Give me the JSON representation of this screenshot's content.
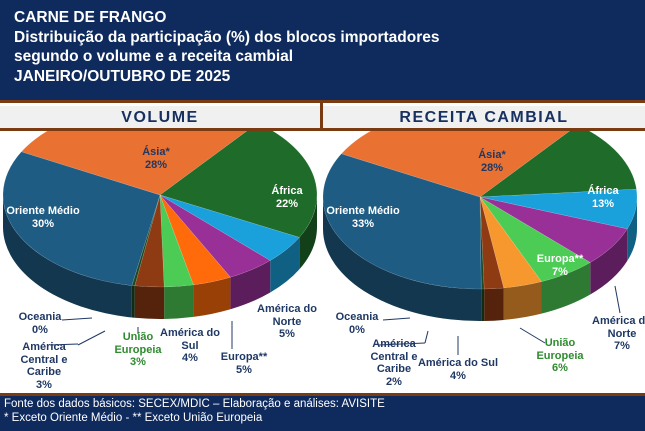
{
  "header": {
    "lines": [
      "CARNE DE FRANGO",
      "Distribuição da participação (%) dos blocos importadores",
      "segundo o volume e a receita cambial",
      "JANEIRO/OUTUBRO DE 2025"
    ]
  },
  "footer": {
    "source": "Fonte dos dados básicos: SECEX/MDIC – Elaboração e análises: AVISITE",
    "notes": "* Exceto Oriente Médio - ** Exceto União Europeia"
  },
  "chart_data": [
    {
      "type": "pie",
      "style": "3d",
      "title": "VOLUME",
      "unit": "%",
      "slices": [
        {
          "label": "Ásia*",
          "value": 28,
          "display": "28%",
          "color": "#E97132"
        },
        {
          "label": "África",
          "value": 22,
          "display": "22%",
          "color": "#1E6B2A"
        },
        {
          "label": "América do Norte",
          "value": 5,
          "display": "5%",
          "color": "#1AA0DA"
        },
        {
          "label": "Europa**",
          "value": 5,
          "display": "5%",
          "color": "#983098"
        },
        {
          "label": "América do Sul",
          "value": 4,
          "display": "4%",
          "color": "#FF6A0A"
        },
        {
          "label": "União Europeia",
          "value": 3,
          "display": "3%",
          "color": "#4CCB55"
        },
        {
          "label": "América Central e Caribe",
          "value": 3,
          "display": "3%",
          "color": "#8E3A12"
        },
        {
          "label": "Oceania",
          "value": 0,
          "display": "0%",
          "color": "#1E4A22"
        },
        {
          "label": "Oriente Médio",
          "value": 30,
          "display": "30%",
          "color": "#1F5C84"
        }
      ]
    },
    {
      "type": "pie",
      "style": "3d",
      "title": "RECEITA CAMBIAL",
      "unit": "%",
      "slices": [
        {
          "label": "Ásia*",
          "value": 28,
          "display": "28%",
          "color": "#E97132"
        },
        {
          "label": "África",
          "value": 13,
          "display": "13%",
          "color": "#1E6B2A"
        },
        {
          "label": "América do Norte",
          "value": 7,
          "display": "7%",
          "color": "#1AA0DA"
        },
        {
          "label": "Europa**",
          "value": 7,
          "display": "7%",
          "color": "#983098"
        },
        {
          "label": "União Europeia",
          "value": 6,
          "display": "6%",
          "color": "#4CCB55"
        },
        {
          "label": "América do Sul",
          "value": 4,
          "display": "4%",
          "color": "#F7982F"
        },
        {
          "label": "América Central e Caribe",
          "value": 2,
          "display": "2%",
          "color": "#8E3A12"
        },
        {
          "label": "Oceania",
          "value": 0,
          "display": "0%",
          "color": "#1E4A22"
        },
        {
          "label": "Oriente Médio",
          "value": 33,
          "display": "33%",
          "color": "#1F5C84"
        }
      ]
    }
  ],
  "labels": {
    "left": {
      "asia": [
        "Ásia*",
        "28%"
      ],
      "africa": [
        "África",
        "22%"
      ],
      "oriente": [
        "Oriente Médio",
        "30%"
      ],
      "amnorte": [
        "América do",
        "Norte",
        "5%"
      ],
      "europa": [
        "Europa**",
        "5%"
      ],
      "amsul": [
        "América do",
        "Sul",
        "4%"
      ],
      "ue": [
        "União",
        "Europeia",
        "3%"
      ],
      "amcentral": [
        "América",
        "Central e",
        "Caribe",
        "3%"
      ],
      "oceania": [
        "Oceania",
        "0%"
      ]
    },
    "right": {
      "asia": [
        "Ásia*",
        "28%"
      ],
      "africa": [
        "África",
        "13%"
      ],
      "oriente": [
        "Oriente Médio",
        "33%"
      ],
      "amnorte": [
        "América do",
        "Norte",
        "7%"
      ],
      "europa": [
        "Europa**",
        "7%"
      ],
      "amsul": [
        "América do Sul",
        "4%"
      ],
      "ue": [
        "União",
        "Europeia",
        "6%"
      ],
      "amcentral": [
        "América",
        "Central e",
        "Caribe",
        "2%"
      ],
      "oceania": [
        "Oceania",
        "0%"
      ]
    }
  }
}
